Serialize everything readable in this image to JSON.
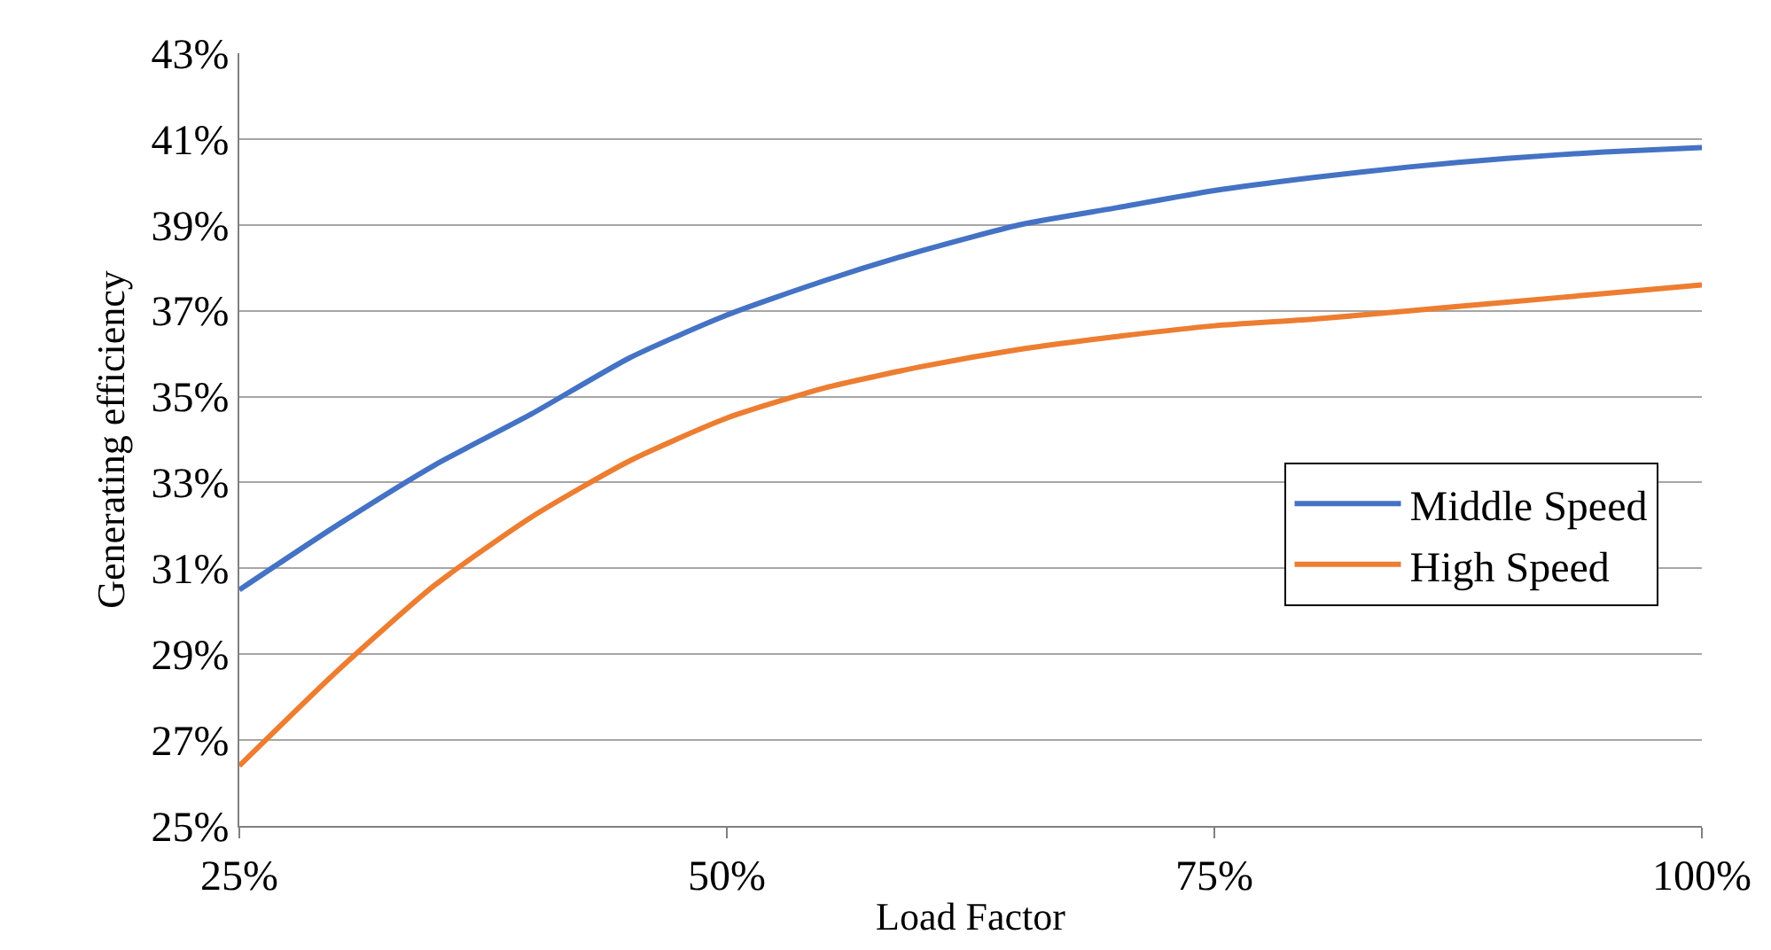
{
  "chart_data": {
    "type": "line",
    "xlabel": "Load Factor",
    "ylabel": "Generating efficiency",
    "x": [
      25,
      30,
      35,
      40,
      45,
      50,
      55,
      60,
      65,
      70,
      75,
      80,
      85,
      90,
      95,
      100
    ],
    "series": [
      {
        "name": "Middle Speed",
        "color": "#4472c4",
        "values": [
          30.5,
          32.0,
          33.4,
          34.6,
          35.9,
          36.9,
          37.7,
          38.4,
          39.0,
          39.4,
          39.8,
          40.1,
          40.35,
          40.55,
          40.7,
          40.8
        ]
      },
      {
        "name": "High Speed",
        "color": "#ed7d31",
        "values": [
          26.4,
          28.6,
          30.6,
          32.2,
          33.5,
          34.5,
          35.2,
          35.7,
          36.1,
          36.4,
          36.65,
          36.8,
          37.0,
          37.2,
          37.4,
          37.6
        ]
      }
    ],
    "xlim": [
      25,
      100
    ],
    "xticks": [
      {
        "value": 25,
        "label": "25%"
      },
      {
        "value": 50,
        "label": "50%"
      },
      {
        "value": 75,
        "label": "75%"
      },
      {
        "value": 100,
        "label": "100%"
      }
    ],
    "ylim": [
      25,
      43
    ],
    "yticks": [
      {
        "value": 25,
        "label": "25%"
      },
      {
        "value": 27,
        "label": "27%"
      },
      {
        "value": 29,
        "label": "29%"
      },
      {
        "value": 31,
        "label": "31%"
      },
      {
        "value": 33,
        "label": "33%"
      },
      {
        "value": 35,
        "label": "35%"
      },
      {
        "value": 37,
        "label": "37%"
      },
      {
        "value": 39,
        "label": "39%"
      },
      {
        "value": 41,
        "label": "41%"
      },
      {
        "value": 43,
        "label": "43%"
      }
    ],
    "grid": "y",
    "legend": "right",
    "marker": "none",
    "line_style": "solid"
  }
}
